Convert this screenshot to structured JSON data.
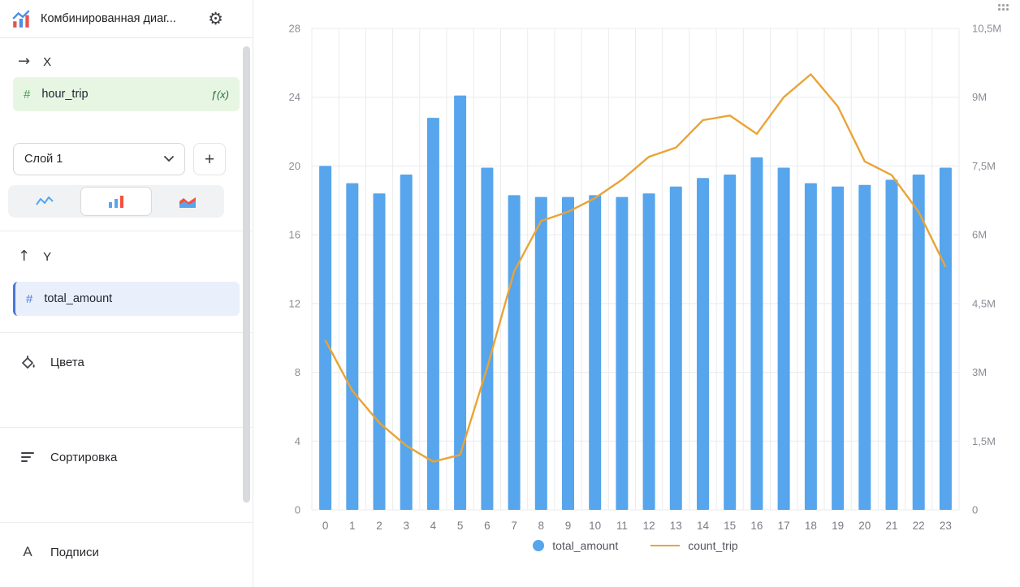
{
  "header": {
    "title": "Комбинированная диаг..."
  },
  "icons": {
    "gear": "⚙",
    "arrow_right": "→",
    "arrow_up": "↑",
    "hash": "#",
    "plus": "+",
    "fx": "ƒ(x)",
    "labels_letter": "А"
  },
  "sidebar": {
    "x_label": "X",
    "x_field": "hour_trip",
    "layer_selected": "Слой 1",
    "y_label": "Y",
    "y_field": "total_amount",
    "colors_label": "Цвета",
    "sorting_label": "Сортировка",
    "labels_label": "Подписи"
  },
  "chart_data": {
    "type": "combo",
    "categories": [
      "0",
      "1",
      "2",
      "3",
      "4",
      "5",
      "6",
      "7",
      "8",
      "9",
      "10",
      "11",
      "12",
      "13",
      "14",
      "15",
      "16",
      "17",
      "18",
      "19",
      "20",
      "21",
      "22",
      "23"
    ],
    "series": [
      {
        "name": "total_amount",
        "type": "bar",
        "axis": "left",
        "color": "#57A5EC",
        "values": [
          20.0,
          19.0,
          18.4,
          19.5,
          22.8,
          24.1,
          19.9,
          18.3,
          18.2,
          18.2,
          18.3,
          18.2,
          18.4,
          18.8,
          19.3,
          19.5,
          20.5,
          19.9,
          19.0,
          18.8,
          18.9,
          19.2,
          19.5,
          19.9
        ]
      },
      {
        "name": "count_trip",
        "type": "line",
        "axis": "right",
        "color": "#E9A437",
        "values_millions": [
          3.7,
          2.6,
          1.9,
          1.4,
          1.05,
          1.2,
          3.1,
          5.2,
          6.3,
          6.5,
          6.8,
          7.2,
          7.7,
          7.9,
          8.5,
          8.6,
          8.2,
          9.0,
          9.5,
          8.8,
          7.6,
          7.3,
          6.5,
          5.3
        ]
      }
    ],
    "left_axis": {
      "ticks": [
        0,
        4,
        8,
        12,
        16,
        20,
        24,
        28
      ],
      "max": 28
    },
    "right_axis": {
      "tick_labels": [
        "0",
        "1,5M",
        "3M",
        "4,5M",
        "6M",
        "7,5M",
        "9M",
        "10,5M"
      ],
      "max_millions": 10.5
    },
    "grid": true,
    "legend_position": "bottom",
    "legend": [
      {
        "label": "total_amount",
        "marker": "circle",
        "color": "#57A5EC"
      },
      {
        "label": "count_trip",
        "marker": "line",
        "color": "#E9A437"
      }
    ]
  }
}
